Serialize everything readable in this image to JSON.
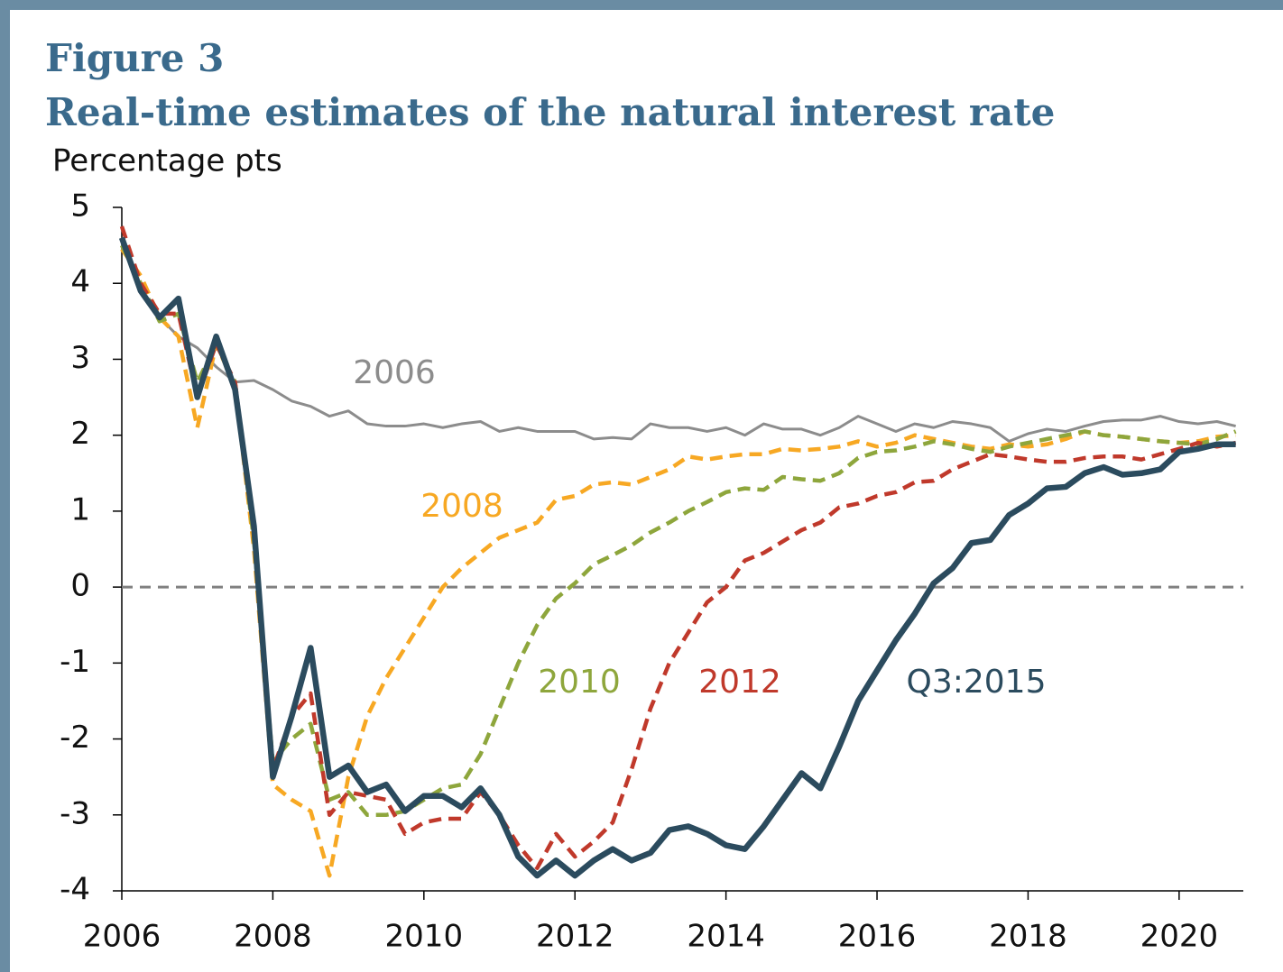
{
  "chart_data": {
    "type": "line",
    "figure_label": "Figure 3",
    "title": "Real-time estimates of the natural interest rate",
    "y_axis_label": "Percentage pts",
    "x": [
      2006,
      2006.25,
      2006.5,
      2006.75,
      2007,
      2007.25,
      2007.5,
      2007.75,
      2008,
      2008.25,
      2008.5,
      2008.75,
      2009,
      2009.25,
      2009.5,
      2009.75,
      2010,
      2010.25,
      2010.5,
      2010.75,
      2011,
      2011.25,
      2011.5,
      2011.75,
      2012,
      2012.25,
      2012.5,
      2012.75,
      2013,
      2013.25,
      2013.5,
      2013.75,
      2014,
      2014.25,
      2014.5,
      2014.75,
      2015,
      2015.25,
      2015.5,
      2015.75,
      2016,
      2016.25,
      2016.5,
      2016.75,
      2017,
      2017.25,
      2017.5,
      2017.75,
      2018,
      2018.25,
      2018.5,
      2018.75,
      2019,
      2019.25,
      2019.5,
      2019.75,
      2020,
      2020.25,
      2020.5,
      2020.75
    ],
    "series": [
      {
        "name": "2006",
        "color": "#8c8c8c",
        "dashed": false,
        "values": [
          4.6,
          3.95,
          3.55,
          3.3,
          3.15,
          2.9,
          2.7,
          2.72,
          2.6,
          2.45,
          2.38,
          2.25,
          2.32,
          2.15,
          2.12,
          2.12,
          2.15,
          2.1,
          2.15,
          2.18,
          2.05,
          2.1,
          2.05,
          2.05,
          2.05,
          1.95,
          1.97,
          1.95,
          2.15,
          2.1,
          2.1,
          2.05,
          2.1,
          2.0,
          2.15,
          2.08,
          2.08,
          2.0,
          2.1,
          2.25,
          2.15,
          2.05,
          2.15,
          2.1,
          2.18,
          2.15,
          2.1,
          1.92,
          2.02,
          2.08,
          2.05,
          2.12,
          2.18,
          2.2,
          2.2,
          2.25,
          2.18,
          2.15,
          2.18,
          2.12
        ]
      },
      {
        "name": "2008",
        "color": "#f7a823",
        "dashed": true,
        "values": [
          4.45,
          4.1,
          3.55,
          3.3,
          2.1,
          3.2,
          2.65,
          0.5,
          -2.6,
          -2.8,
          -2.95,
          -3.8,
          -2.5,
          -1.7,
          -1.2,
          -0.8,
          -0.4,
          0.0,
          0.25,
          0.45,
          0.65,
          0.75,
          0.85,
          1.15,
          1.2,
          1.35,
          1.38,
          1.35,
          1.45,
          1.55,
          1.72,
          1.68,
          1.72,
          1.75,
          1.75,
          1.82,
          1.8,
          1.82,
          1.85,
          1.92,
          1.85,
          1.9,
          2.0,
          1.95,
          1.9,
          1.85,
          1.82,
          1.88,
          1.85,
          1.88,
          1.95,
          2.05,
          2.0,
          1.98,
          1.95,
          1.92,
          1.9,
          1.92,
          1.98,
          2.0
        ]
      },
      {
        "name": "2010",
        "color": "#8ea63c",
        "dashed": true,
        "values": [
          4.5,
          4.0,
          3.5,
          3.6,
          2.7,
          3.2,
          2.7,
          0.6,
          -2.3,
          -2.0,
          -1.8,
          -2.8,
          -2.7,
          -3.0,
          -3.0,
          -2.95,
          -2.8,
          -2.65,
          -2.6,
          -2.2,
          -1.6,
          -1.0,
          -0.5,
          -0.15,
          0.05,
          0.3,
          0.42,
          0.55,
          0.72,
          0.85,
          1.0,
          1.12,
          1.25,
          1.3,
          1.28,
          1.45,
          1.42,
          1.4,
          1.5,
          1.7,
          1.78,
          1.8,
          1.85,
          1.92,
          1.88,
          1.82,
          1.78,
          1.85,
          1.9,
          1.95,
          2.0,
          2.05,
          2.0,
          1.98,
          1.95,
          1.92,
          1.9,
          1.88,
          1.95,
          2.05
        ]
      },
      {
        "name": "2012",
        "color": "#c0392b",
        "dashed": true,
        "values": [
          4.75,
          4.0,
          3.6,
          3.6,
          2.5,
          3.2,
          2.7,
          0.7,
          -2.4,
          -1.7,
          -1.4,
          -3.0,
          -2.7,
          -2.75,
          -2.8,
          -3.25,
          -3.1,
          -3.05,
          -3.05,
          -2.7,
          -3.0,
          -3.4,
          -3.7,
          -3.25,
          -3.55,
          -3.35,
          -3.1,
          -2.4,
          -1.6,
          -1.0,
          -0.6,
          -0.2,
          0.0,
          0.35,
          0.45,
          0.6,
          0.75,
          0.85,
          1.05,
          1.1,
          1.2,
          1.25,
          1.38,
          1.4,
          1.55,
          1.65,
          1.75,
          1.72,
          1.68,
          1.65,
          1.65,
          1.7,
          1.72,
          1.72,
          1.68,
          1.75,
          1.82,
          1.9,
          1.85,
          1.9
        ]
      },
      {
        "name": "Q3:2015",
        "color": "#2b4b5e",
        "dashed": false,
        "values": [
          4.6,
          3.9,
          3.55,
          3.8,
          2.5,
          3.3,
          2.6,
          0.8,
          -2.5,
          -1.7,
          -0.8,
          -2.5,
          -2.35,
          -2.7,
          -2.6,
          -2.95,
          -2.75,
          -2.75,
          -2.9,
          -2.65,
          -3.0,
          -3.55,
          -3.8,
          -3.6,
          -3.8,
          -3.6,
          -3.45,
          -3.6,
          -3.5,
          -3.2,
          -3.15,
          -3.25,
          -3.4,
          -3.45,
          -3.15,
          -2.8,
          -2.45,
          -2.65,
          -2.1,
          -1.5,
          -1.1,
          -0.7,
          -0.35,
          0.05,
          0.25,
          0.58,
          0.62,
          0.95,
          1.1,
          1.3,
          1.32,
          1.5,
          1.58,
          1.48,
          1.5,
          1.55,
          1.78,
          1.82,
          1.88,
          1.88
        ]
      }
    ],
    "xlim": [
      2006,
      2020.85
    ],
    "xticks": [
      2006,
      2008,
      2010,
      2012,
      2014,
      2016,
      2018,
      2020
    ],
    "ylim": [
      -4,
      5
    ],
    "yticks": [
      -4,
      -3,
      -2,
      -1,
      0,
      1,
      2,
      3,
      4,
      5
    ],
    "zero_line": true
  }
}
